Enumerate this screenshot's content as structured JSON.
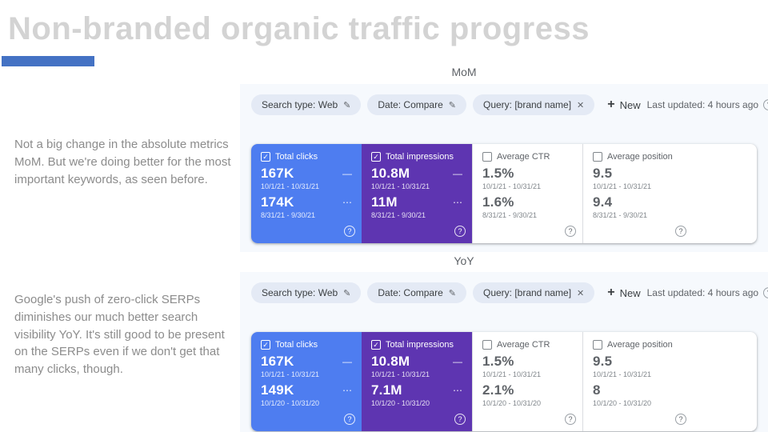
{
  "slide": {
    "title": "Non-branded organic traffic progress",
    "notes": [
      "Not a big change in the absolute metrics MoM. But we're doing better for the most important keywords, as seen before.",
      "Google's push of zero-click SERPs diminishes our much better search visibility YoY. It's still good to be present on the SERPs even if we don't get that many clicks, though."
    ]
  },
  "icons": {
    "edit": "✎",
    "close": "✕",
    "add": "+",
    "help": "?",
    "check": "✓",
    "dash": "—",
    "ellipsis": "⋯"
  },
  "colors": {
    "accent": "#4472c4",
    "clicks_card": "#4e7df0",
    "impressions_card": "#5e35b1"
  },
  "panels": [
    {
      "label": "MoM",
      "filters": [
        {
          "label": "Search type: Web"
        },
        {
          "label": "Date: Compare"
        },
        {
          "label": "Query: [brand name]"
        }
      ],
      "new_button_label": "New",
      "last_updated": "Last updated: 4 hours ago",
      "cards": [
        {
          "title": "Total clicks",
          "value1": "167K",
          "period1": "10/1/21 - 10/31/21",
          "value2": "174K",
          "period2": "8/31/21 - 9/30/21"
        },
        {
          "title": "Total impressions",
          "value1": "10.8M",
          "period1": "10/1/21 - 10/31/21",
          "value2": "11M",
          "period2": "8/31/21 - 9/30/21"
        },
        {
          "title": "Average CTR",
          "value1": "1.5%",
          "period1": "10/1/21 - 10/31/21",
          "value2": "1.6%",
          "period2": "8/31/21 - 9/30/21"
        },
        {
          "title": "Average position",
          "value1": "9.5",
          "period1": "10/1/21 - 10/31/21",
          "value2": "9.4",
          "period2": "8/31/21 - 9/30/21"
        }
      ]
    },
    {
      "label": "YoY",
      "filters": [
        {
          "label": "Search type: Web"
        },
        {
          "label": "Date: Compare"
        },
        {
          "label": "Query: [brand name]"
        }
      ],
      "new_button_label": "New",
      "last_updated": "Last updated: 4 hours ago",
      "cards": [
        {
          "title": "Total clicks",
          "value1": "167K",
          "period1": "10/1/21 - 10/31/21",
          "value2": "149K",
          "period2": "10/1/20 - 10/31/20"
        },
        {
          "title": "Total impressions",
          "value1": "10.8M",
          "period1": "10/1/21 - 10/31/21",
          "value2": "7.1M",
          "period2": "10/1/20 - 10/31/20"
        },
        {
          "title": "Average CTR",
          "value1": "1.5%",
          "period1": "10/1/21 - 10/31/21",
          "value2": "2.1%",
          "period2": "10/1/20 - 10/31/20"
        },
        {
          "title": "Average position",
          "value1": "9.5",
          "period1": "10/1/21 - 10/31/21",
          "value2": "8",
          "period2": "10/1/20 - 10/31/20"
        }
      ]
    }
  ]
}
